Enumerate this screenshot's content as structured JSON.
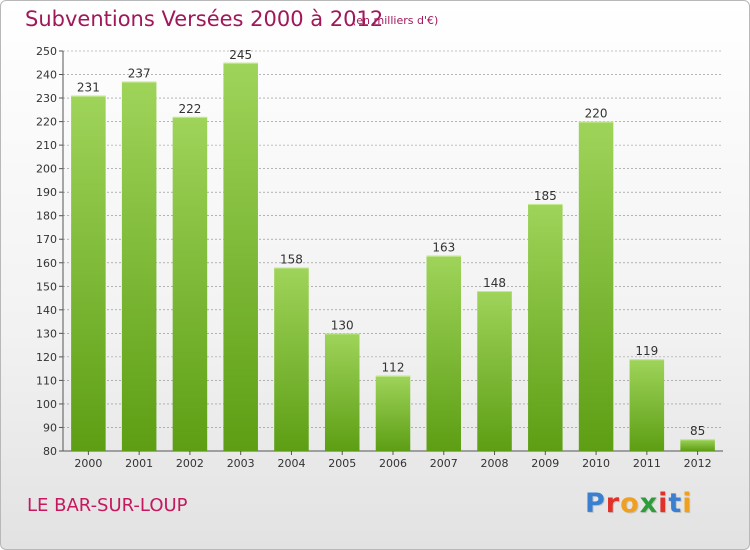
{
  "header": {
    "title": "Subventions Versées 2000 à 2012",
    "unit": "(en milliers d'€)"
  },
  "footer": {
    "commune": "LE BAR-SUR-LOUP",
    "logo_text": "Proxiti",
    "logo_colors": [
      "#3a7fd0",
      "#e0322a",
      "#f0a020",
      "#2d9d3a",
      "#e0322a",
      "#3a7fd0",
      "#f0a020"
    ]
  },
  "colors": {
    "title": "#a0185a",
    "bar_light": "#9fd45a",
    "bar_dark": "#5d9e14",
    "grid": "#8a8a8a"
  },
  "chart_data": {
    "type": "bar",
    "categories": [
      "2000",
      "2001",
      "2002",
      "2003",
      "2004",
      "2005",
      "2006",
      "2007",
      "2008",
      "2009",
      "2010",
      "2011",
      "2012"
    ],
    "values": [
      231,
      237,
      222,
      245,
      158,
      130,
      112,
      163,
      148,
      185,
      220,
      119,
      85
    ],
    "ylim": [
      80,
      250
    ],
    "yticks": [
      80,
      90,
      100,
      110,
      120,
      130,
      140,
      150,
      160,
      170,
      180,
      190,
      200,
      210,
      220,
      230,
      240,
      250
    ],
    "grid": true,
    "data_labels": true
  }
}
